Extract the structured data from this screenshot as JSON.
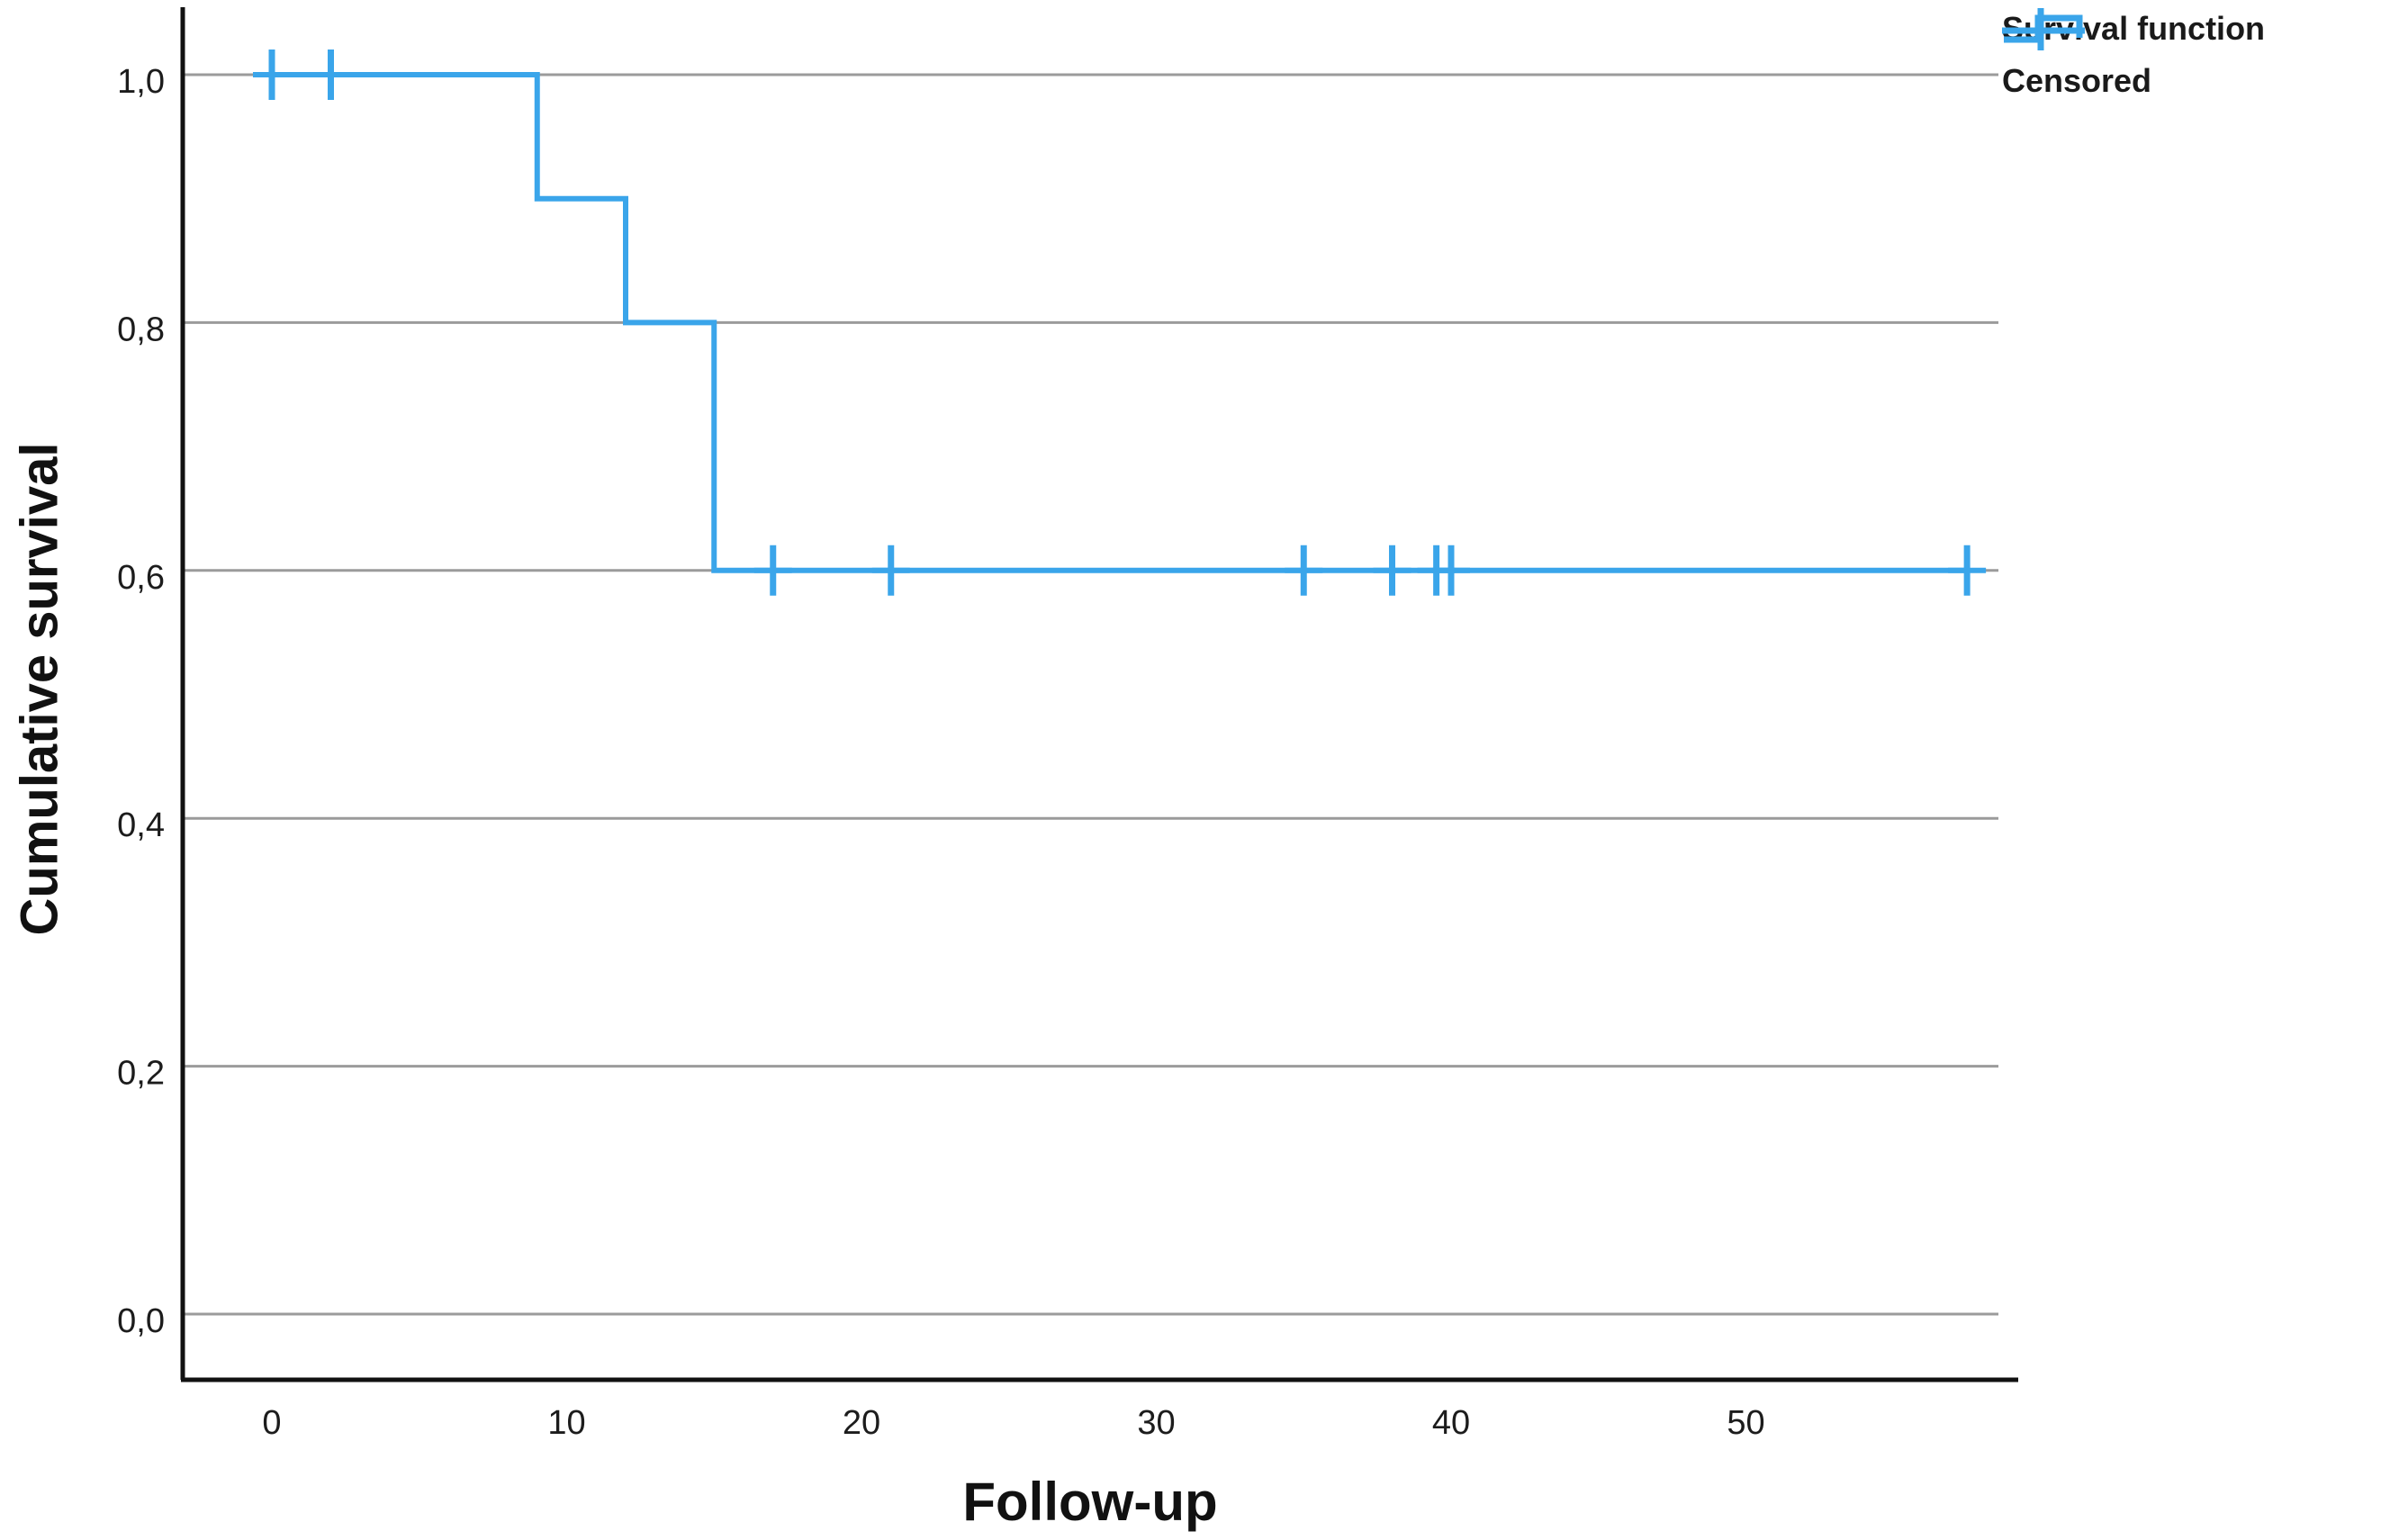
{
  "chart_data": {
    "type": "line",
    "subtype": "kaplan-meier-step",
    "title": "",
    "xlabel": "Follow-up",
    "ylabel": "Cumulative survival",
    "x_ticks": [
      0,
      10,
      20,
      30,
      40,
      50
    ],
    "y_ticks": [
      {
        "value": 0.0,
        "label": "0,0"
      },
      {
        "value": 0.2,
        "label": "0,2"
      },
      {
        "value": 0.4,
        "label": "0,4"
      },
      {
        "value": 0.6,
        "label": "0,6"
      },
      {
        "value": 0.8,
        "label": "0,8"
      },
      {
        "value": 1.0,
        "label": "1,0"
      }
    ],
    "xlim": [
      -3,
      59.5
    ],
    "ylim": [
      -0.05,
      1.05
    ],
    "grid": "horizontal-only",
    "legend_position": "top-right",
    "legend": [
      {
        "label": "Survival function",
        "marker": "step-line-icon"
      },
      {
        "label": "Censored",
        "marker": "plus-marker-icon"
      }
    ],
    "series": [
      {
        "name": "Survival function",
        "start": [
          0,
          1.0
        ],
        "steps": [
          [
            9,
            0.9
          ],
          [
            12,
            0.8
          ],
          [
            15,
            0.6
          ]
        ],
        "end_time": 57.5
      }
    ],
    "censored_points": [
      [
        0,
        1.0
      ],
      [
        2,
        1.0
      ],
      [
        17,
        0.6
      ],
      [
        21,
        0.6
      ],
      [
        35,
        0.6
      ],
      [
        38,
        0.6
      ],
      [
        39.5,
        0.6
      ],
      [
        40,
        0.6
      ],
      [
        57.5,
        0.6
      ]
    ],
    "colors": {
      "survival_line": "#3AA5EA",
      "censor_mark": "#3AA5EA",
      "gridline": "#9B9B9B",
      "axis": "#111111",
      "tick_text": "#1c1c1c"
    }
  }
}
